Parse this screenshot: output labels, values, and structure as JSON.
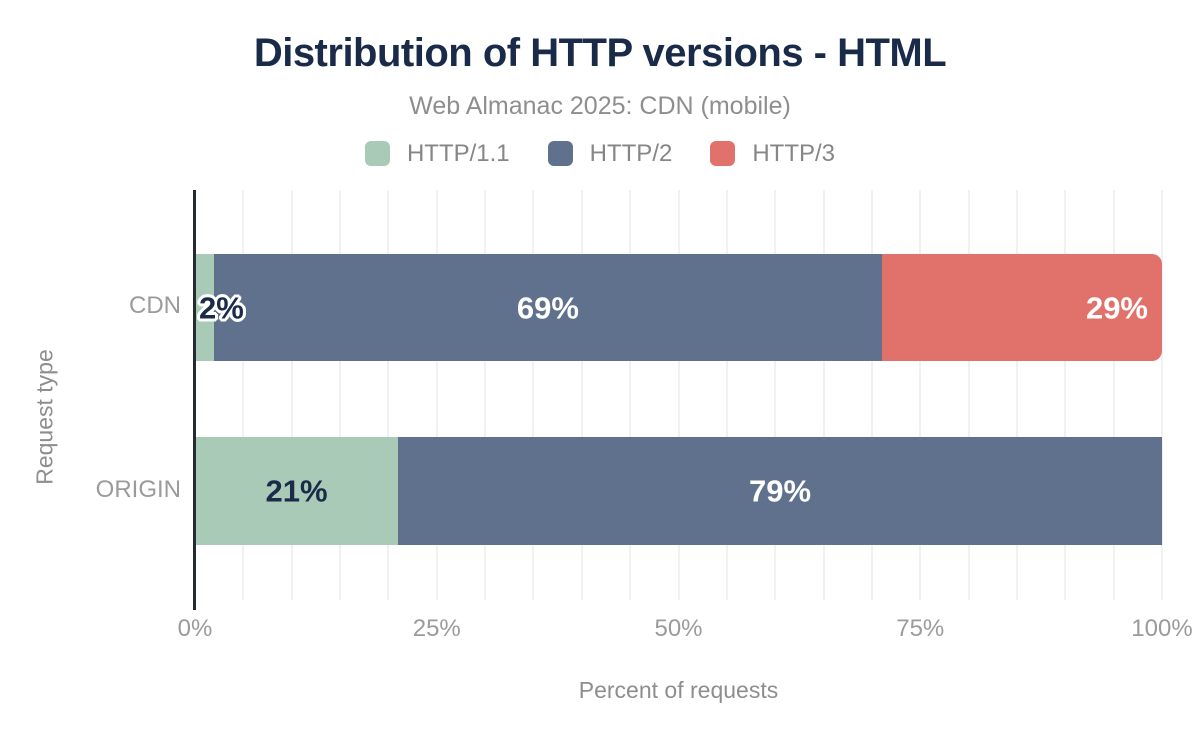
{
  "chart_data": {
    "type": "bar",
    "stacked": true,
    "horizontal": true,
    "title": "Distribution of HTTP versions - HTML",
    "subtitle": "Web Almanac 2025: CDN (mobile)",
    "xlabel": "Percent of requests",
    "ylabel": "Request type",
    "categories": [
      "CDN",
      "ORIGIN"
    ],
    "series": [
      {
        "name": "HTTP/1.1",
        "color": "#a9cab7",
        "label_color": "#1a2b49",
        "values": [
          2,
          21
        ]
      },
      {
        "name": "HTTP/2",
        "color": "#60718d",
        "label_color": "#ffffff",
        "values": [
          69,
          79
        ]
      },
      {
        "name": "HTTP/3",
        "color": "#e1726b",
        "label_color": "#ffffff",
        "values": [
          29,
          0
        ]
      }
    ],
    "unit": "%",
    "xlim": [
      0,
      100
    ],
    "xticks": [
      {
        "value": 0,
        "label": "0%"
      },
      {
        "value": 25,
        "label": "25%"
      },
      {
        "value": 50,
        "label": "50%"
      },
      {
        "value": 75,
        "label": "75%"
      },
      {
        "value": 100,
        "label": "100%"
      }
    ],
    "grid_step_percent": 5,
    "legend_position": "top",
    "colors": {
      "title_text": "#1a2b49",
      "muted_text": "#8e8e8e",
      "axis_text": "#9b9b9b",
      "gridline": "#f1f1f1",
      "axis_line": "#262b33",
      "background": "#ffffff"
    }
  }
}
